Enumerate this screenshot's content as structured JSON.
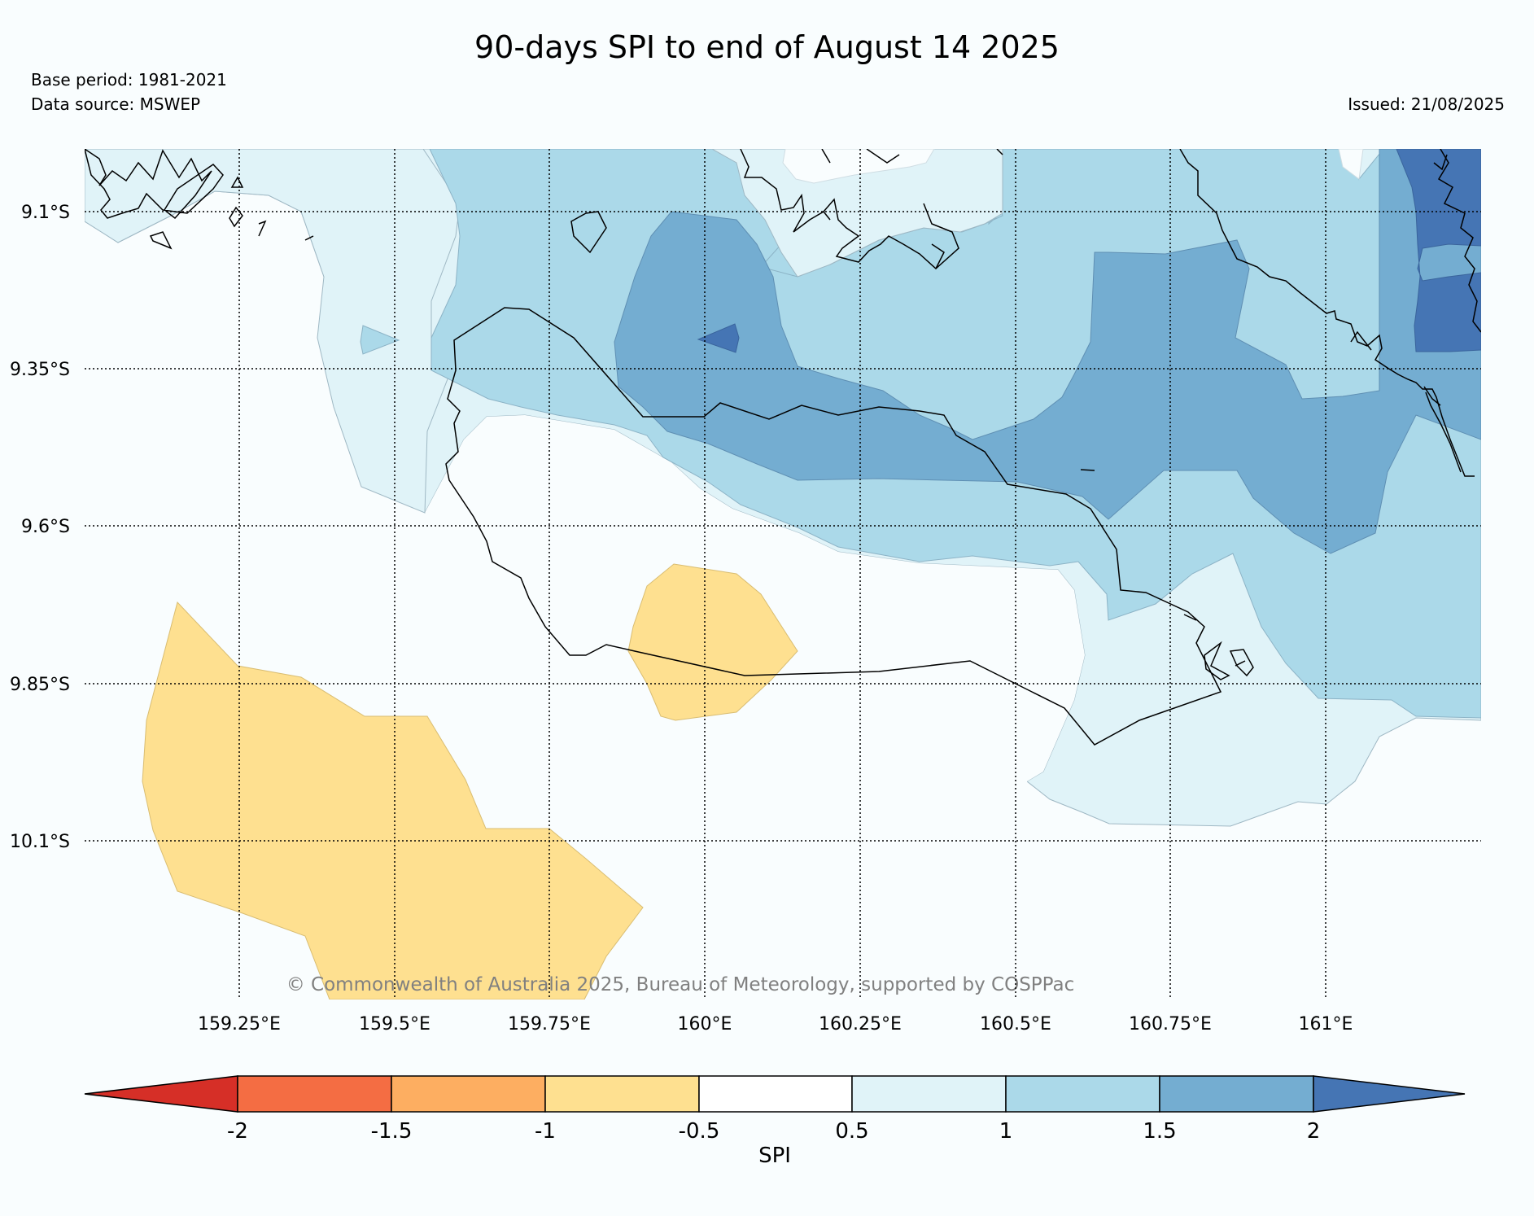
{
  "title": "90-days SPI to end of August 14 2025",
  "meta": {
    "base_period": "Base period: 1981-2021",
    "data_source": "Data source: MSWEP",
    "issued": "Issued: 21/08/2025"
  },
  "copyright": "© Commonwealth of Australia 2025, Bureau of Meteorology, supported by COSPPac",
  "map": {
    "lat_ticks": [
      "9.1°S",
      "9.35°S",
      "9.6°S",
      "9.85°S",
      "10.1°S"
    ],
    "lon_ticks": [
      "159.25°E",
      "159.5°E",
      "159.75°E",
      "160°E",
      "160.25°E",
      "160.5°E",
      "160.75°E",
      "161°E"
    ]
  },
  "colorbar": {
    "label": "SPI",
    "ticks": [
      "-2",
      "-1.5",
      "-1",
      "-0.5",
      "0.5",
      "1",
      "1.5",
      "2"
    ],
    "colors": [
      "#d62f27",
      "#f46d43",
      "#fdae61",
      "#fee090",
      "#ffffff",
      "#e0f3f8",
      "#abd9e9",
      "#74add1",
      "#4575b4"
    ]
  }
}
